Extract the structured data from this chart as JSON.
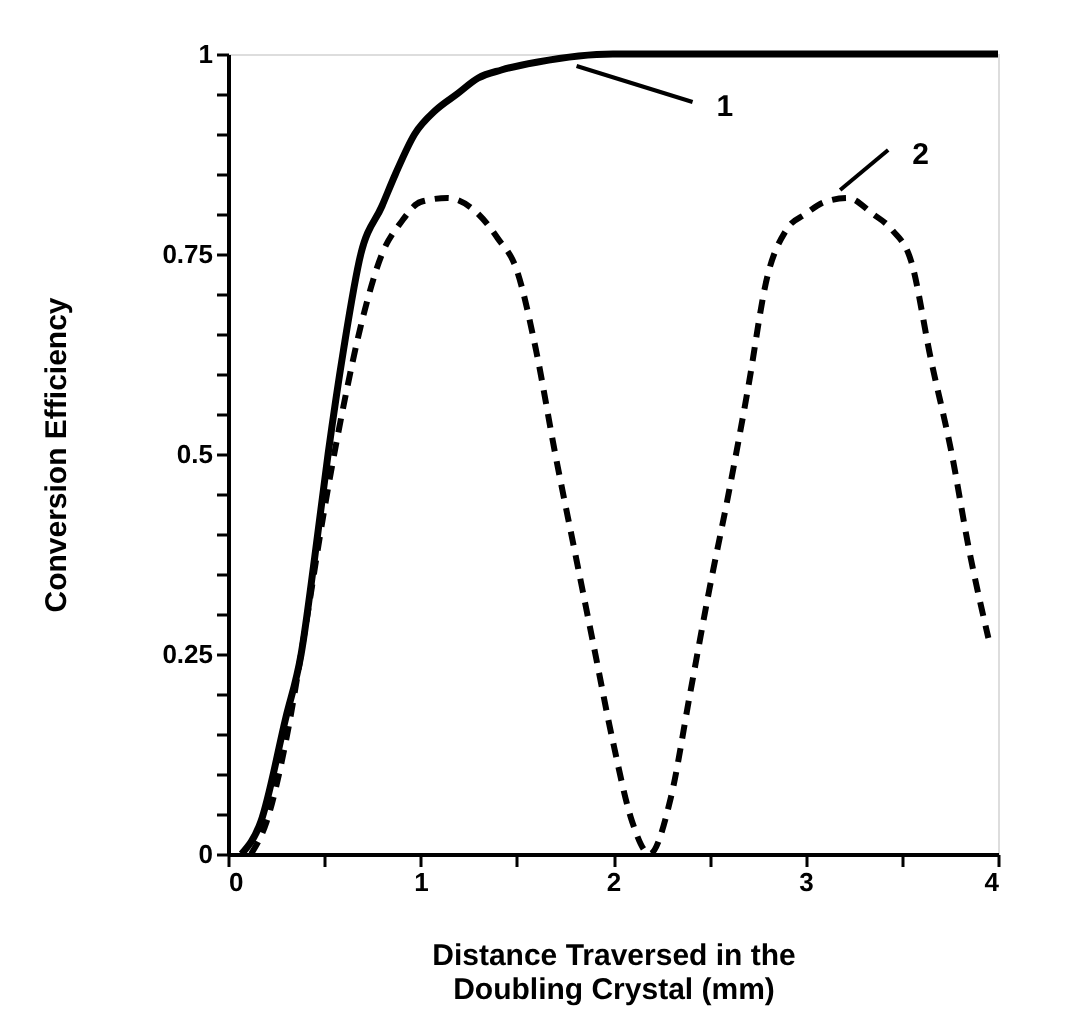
{
  "chart_data": {
    "type": "line",
    "xlabel": "Distance Traversed in the\nDoubling Crystal (mm)",
    "ylabel": "Conversion Efficiency",
    "xlim": [
      0,
      4
    ],
    "ylim": [
      0,
      1
    ],
    "xticks": [
      0,
      {
        "value": 0.5,
        "label": null
      },
      1,
      {
        "value": 1.5,
        "label": null
      },
      2,
      {
        "value": 2.5,
        "label": null
      },
      3,
      {
        "value": 3.5,
        "label": null
      },
      4
    ],
    "yticks": [
      0,
      {
        "value": 0.05,
        "label": null
      },
      {
        "value": 0.1,
        "label": null
      },
      {
        "value": 0.15,
        "label": null
      },
      {
        "value": 0.2,
        "label": null
      },
      0.25,
      {
        "value": 0.3,
        "label": null
      },
      {
        "value": 0.35,
        "label": null
      },
      {
        "value": 0.4,
        "label": null
      },
      {
        "value": 0.45,
        "label": null
      },
      0.5,
      {
        "value": 0.55,
        "label": null
      },
      {
        "value": 0.6,
        "label": null
      },
      {
        "value": 0.65,
        "label": null
      },
      {
        "value": 0.7,
        "label": null
      },
      0.75,
      {
        "value": 0.8,
        "label": null
      },
      {
        "value": 0.85,
        "label": null
      },
      {
        "value": 0.9,
        "label": null
      },
      {
        "value": 0.95,
        "label": null
      },
      1
    ],
    "grid": false,
    "series": [
      {
        "color": "#000000",
        "line_style": "solid",
        "x": [
          0.07,
          0.17,
          0.3,
          0.38,
          0.45,
          0.52,
          0.6,
          0.69,
          0.8,
          0.87,
          0.97,
          1.08,
          1.19,
          1.3,
          1.42,
          1.61,
          2.0,
          3.0,
          4.0
        ],
        "values": [
          0,
          0.04,
          0.17,
          0.25,
          0.37,
          0.5,
          0.63,
          0.75,
          0.81,
          0.85,
          0.9,
          0.93,
          0.95,
          0.97,
          0.98,
          0.99,
          1.0,
          1.0,
          1.0
        ]
      },
      {
        "color": "#000000",
        "line_style": "dashed",
        "x": [
          0.12,
          0.2,
          0.3,
          0.4,
          0.5,
          0.6,
          0.7,
          0.8,
          0.9,
          1.0,
          1.14,
          1.3,
          1.4,
          1.5,
          1.6,
          1.7,
          1.8,
          1.9,
          2.0,
          2.1,
          2.19,
          2.3,
          2.4,
          2.5,
          2.6,
          2.7,
          2.8,
          2.9,
          3.0,
          3.1,
          3.22,
          3.35,
          3.45,
          3.55,
          3.65,
          3.76,
          3.85,
          3.95
        ],
        "values": [
          0,
          0.04,
          0.14,
          0.28,
          0.43,
          0.56,
          0.67,
          0.75,
          0.79,
          0.815,
          0.82,
          0.8,
          0.77,
          0.73,
          0.63,
          0.5,
          0.38,
          0.26,
          0.14,
          0.04,
          0,
          0.07,
          0.2,
          0.33,
          0.45,
          0.58,
          0.72,
          0.78,
          0.8,
          0.815,
          0.82,
          0.8,
          0.78,
          0.74,
          0.62,
          0.5,
          0.38,
          0.27
        ]
      }
    ],
    "annotations": [
      {
        "text": "1",
        "x": 1.79,
        "y": 0.995
      },
      {
        "text": "2",
        "x": 3.18,
        "y": 0.82
      }
    ]
  }
}
